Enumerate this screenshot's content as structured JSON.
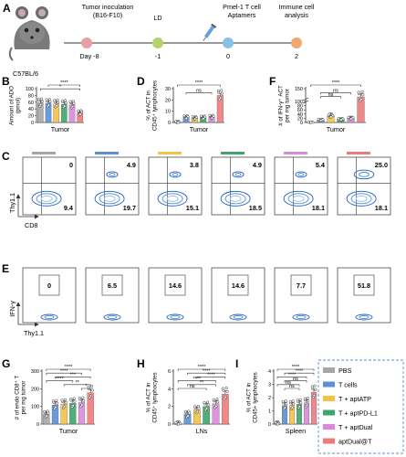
{
  "colors": {
    "pbs": "#a6a6a6",
    "tcells": "#5b8fd6",
    "aptatp": "#f5c242",
    "aptpdl1": "#3fa56a",
    "aptdual": "#d98ad8",
    "aptdualt": "#ee7b7b"
  },
  "panel_a": {
    "label": "A",
    "mouse": "C57BL/6",
    "steps": [
      {
        "title": "Tumor inoculation\n(B16-F10)",
        "day": "Day -8",
        "color": "#e6a0a6"
      },
      {
        "title": "LD",
        "day": "-1",
        "color": "#b5d36a"
      },
      {
        "title": "Pmel-1 T cell\nAptamers",
        "day": "0",
        "color": "#87c0e8"
      },
      {
        "title": "Immune cell\nanalysis",
        "day": "2",
        "color": "#f2a86d"
      }
    ]
  },
  "legend": {
    "items": [
      {
        "label": "PBS",
        "color": "#a6a6a6"
      },
      {
        "label": "T cells",
        "color": "#5b8fd6"
      },
      {
        "label": "T + aptATP",
        "color": "#f5c242"
      },
      {
        "label": "T + aptPD-L1",
        "color": "#3fa56a"
      },
      {
        "label": "T + aptDual",
        "color": "#d98ad8"
      },
      {
        "label": "aptDual@T",
        "color": "#ee7b7b"
      }
    ]
  },
  "panel_b": {
    "label": "B",
    "ylabel": "Amount of ADO\n(pmol)",
    "xlabel": "Tumor",
    "sig": [
      "****",
      "*"
    ]
  },
  "panel_d": {
    "label": "D",
    "ylabel": "% of ACT in\nCD45⁺ lymphocytes",
    "xlabel": "Tumor",
    "sig": [
      "****",
      "ns"
    ]
  },
  "panel_f": {
    "label": "F",
    "ylabel": "# of IFN-γ⁺ ACT\nper mg tumor",
    "xlabel": "Tumor",
    "sig": [
      "****",
      "ns",
      "ns"
    ]
  },
  "panel_c": {
    "label": "C",
    "xlabel": "CD8",
    "ylabel": "Thy1.1",
    "plots": [
      {
        "ur": "0",
        "lr": "9.4"
      },
      {
        "ur": "4.9",
        "lr": "19.7"
      },
      {
        "ur": "3.8",
        "lr": "15.1"
      },
      {
        "ur": "4.9",
        "lr": "18.5"
      },
      {
        "ur": "5.4",
        "lr": "18.1"
      },
      {
        "ur": "25.0",
        "lr": "18.1"
      }
    ]
  },
  "panel_e": {
    "label": "E",
    "xlabel": "Thy1.1",
    "ylabel": "IFN-γ",
    "plots": [
      {
        "v": "0"
      },
      {
        "v": "6.5"
      },
      {
        "v": "14.6"
      },
      {
        "v": "14.6"
      },
      {
        "v": "7.7"
      },
      {
        "v": "51.8"
      }
    ]
  },
  "panel_g": {
    "label": "G",
    "ylabel": "# of endo CD8⁺ T\nper mg tumor",
    "xlabel": "Tumor",
    "sig": [
      "****",
      "****",
      "***",
      "****",
      "**",
      "*"
    ]
  },
  "panel_h": {
    "label": "H",
    "ylabel": "% of ACT in\nCD45⁺ lymphocytes",
    "xlabel": "LNs",
    "sig": [
      "****",
      "****",
      "****",
      "****",
      "**",
      "ns"
    ]
  },
  "panel_i": {
    "label": "I",
    "ylabel": "% of ACT in\nCD45+ lymphocytes",
    "xlabel": "Spleen",
    "sig": [
      "****",
      "****",
      "****",
      "ns",
      "ns",
      "ns"
    ]
  },
  "chart_data": [
    {
      "type": "bar",
      "panel": "B",
      "ylabel": "Amount of ADO (pmol)",
      "xlabel": "Tumor",
      "yticks": [
        0,
        20,
        40,
        60,
        80,
        100
      ],
      "ylim": [
        0,
        100
      ],
      "categories": [
        "PBS",
        "T cells",
        "T + aptATP",
        "T + aptPD-L1",
        "T + aptDual",
        "aptDual@T"
      ],
      "values": [
        58,
        57,
        55,
        54,
        52,
        28
      ]
    },
    {
      "type": "bar",
      "panel": "D",
      "ylabel": "% of ACT in CD45⁺ lymphocytes",
      "xlabel": "Tumor",
      "yticks": [
        0,
        10,
        20,
        30
      ],
      "ylim": [
        0,
        30
      ],
      "categories": [
        "PBS",
        "T cells",
        "T + aptATP",
        "T + aptPD-L1",
        "T + aptDual",
        "aptDual@T"
      ],
      "values": [
        0,
        4.5,
        3.8,
        4.2,
        4.8,
        24
      ]
    },
    {
      "type": "bar",
      "panel": "F",
      "ylabel": "# of IFN-γ⁺ ACT per mg tumor",
      "xlabel": "Tumor",
      "ytick_labels": [
        "0",
        "20",
        "40",
        "60",
        "80",
        "100",
        "150"
      ],
      "categories": [
        "PBS",
        "T cells",
        "T + aptATP",
        "T + aptPD-L1",
        "T + aptDual",
        "aptDual@T"
      ],
      "values": [
        0,
        12,
        30,
        15,
        20,
        118
      ]
    },
    {
      "type": "bar",
      "panel": "G",
      "ylabel": "# of endo CD8⁺ T per mg tumor",
      "xlabel": "Tumor",
      "yticks": [
        0,
        100,
        200,
        300
      ],
      "ylim": [
        0,
        300
      ],
      "categories": [
        "PBS",
        "T cells",
        "T + aptATP",
        "T + aptPD-L1",
        "T + aptDual",
        "aptDual@T"
      ],
      "values": [
        55,
        108,
        112,
        118,
        122,
        178
      ]
    },
    {
      "type": "bar",
      "panel": "H",
      "ylabel": "% of ACT in CD45⁺ lymphocytes",
      "xlabel": "LNs",
      "yticks": [
        0,
        2,
        4,
        6
      ],
      "ylim": [
        0,
        6
      ],
      "categories": [
        "PBS",
        "T cells",
        "T + aptATP",
        "T + aptPD-L1",
        "T + aptDual",
        "aptDual@T"
      ],
      "values": [
        0,
        1.1,
        1.6,
        2.0,
        2.3,
        3.4
      ]
    },
    {
      "type": "bar",
      "panel": "I",
      "ylabel": "% of ACT in CD45+ lymphocytes",
      "xlabel": "Spleen",
      "yticks": [
        0,
        1,
        2,
        3,
        4
      ],
      "ylim": [
        0,
        4
      ],
      "categories": [
        "PBS",
        "T cells",
        "T + aptATP",
        "T + aptPD-L1",
        "T + aptDual",
        "aptDual@T"
      ],
      "values": [
        0,
        1.4,
        1.4,
        1.5,
        1.6,
        2.4
      ]
    }
  ]
}
